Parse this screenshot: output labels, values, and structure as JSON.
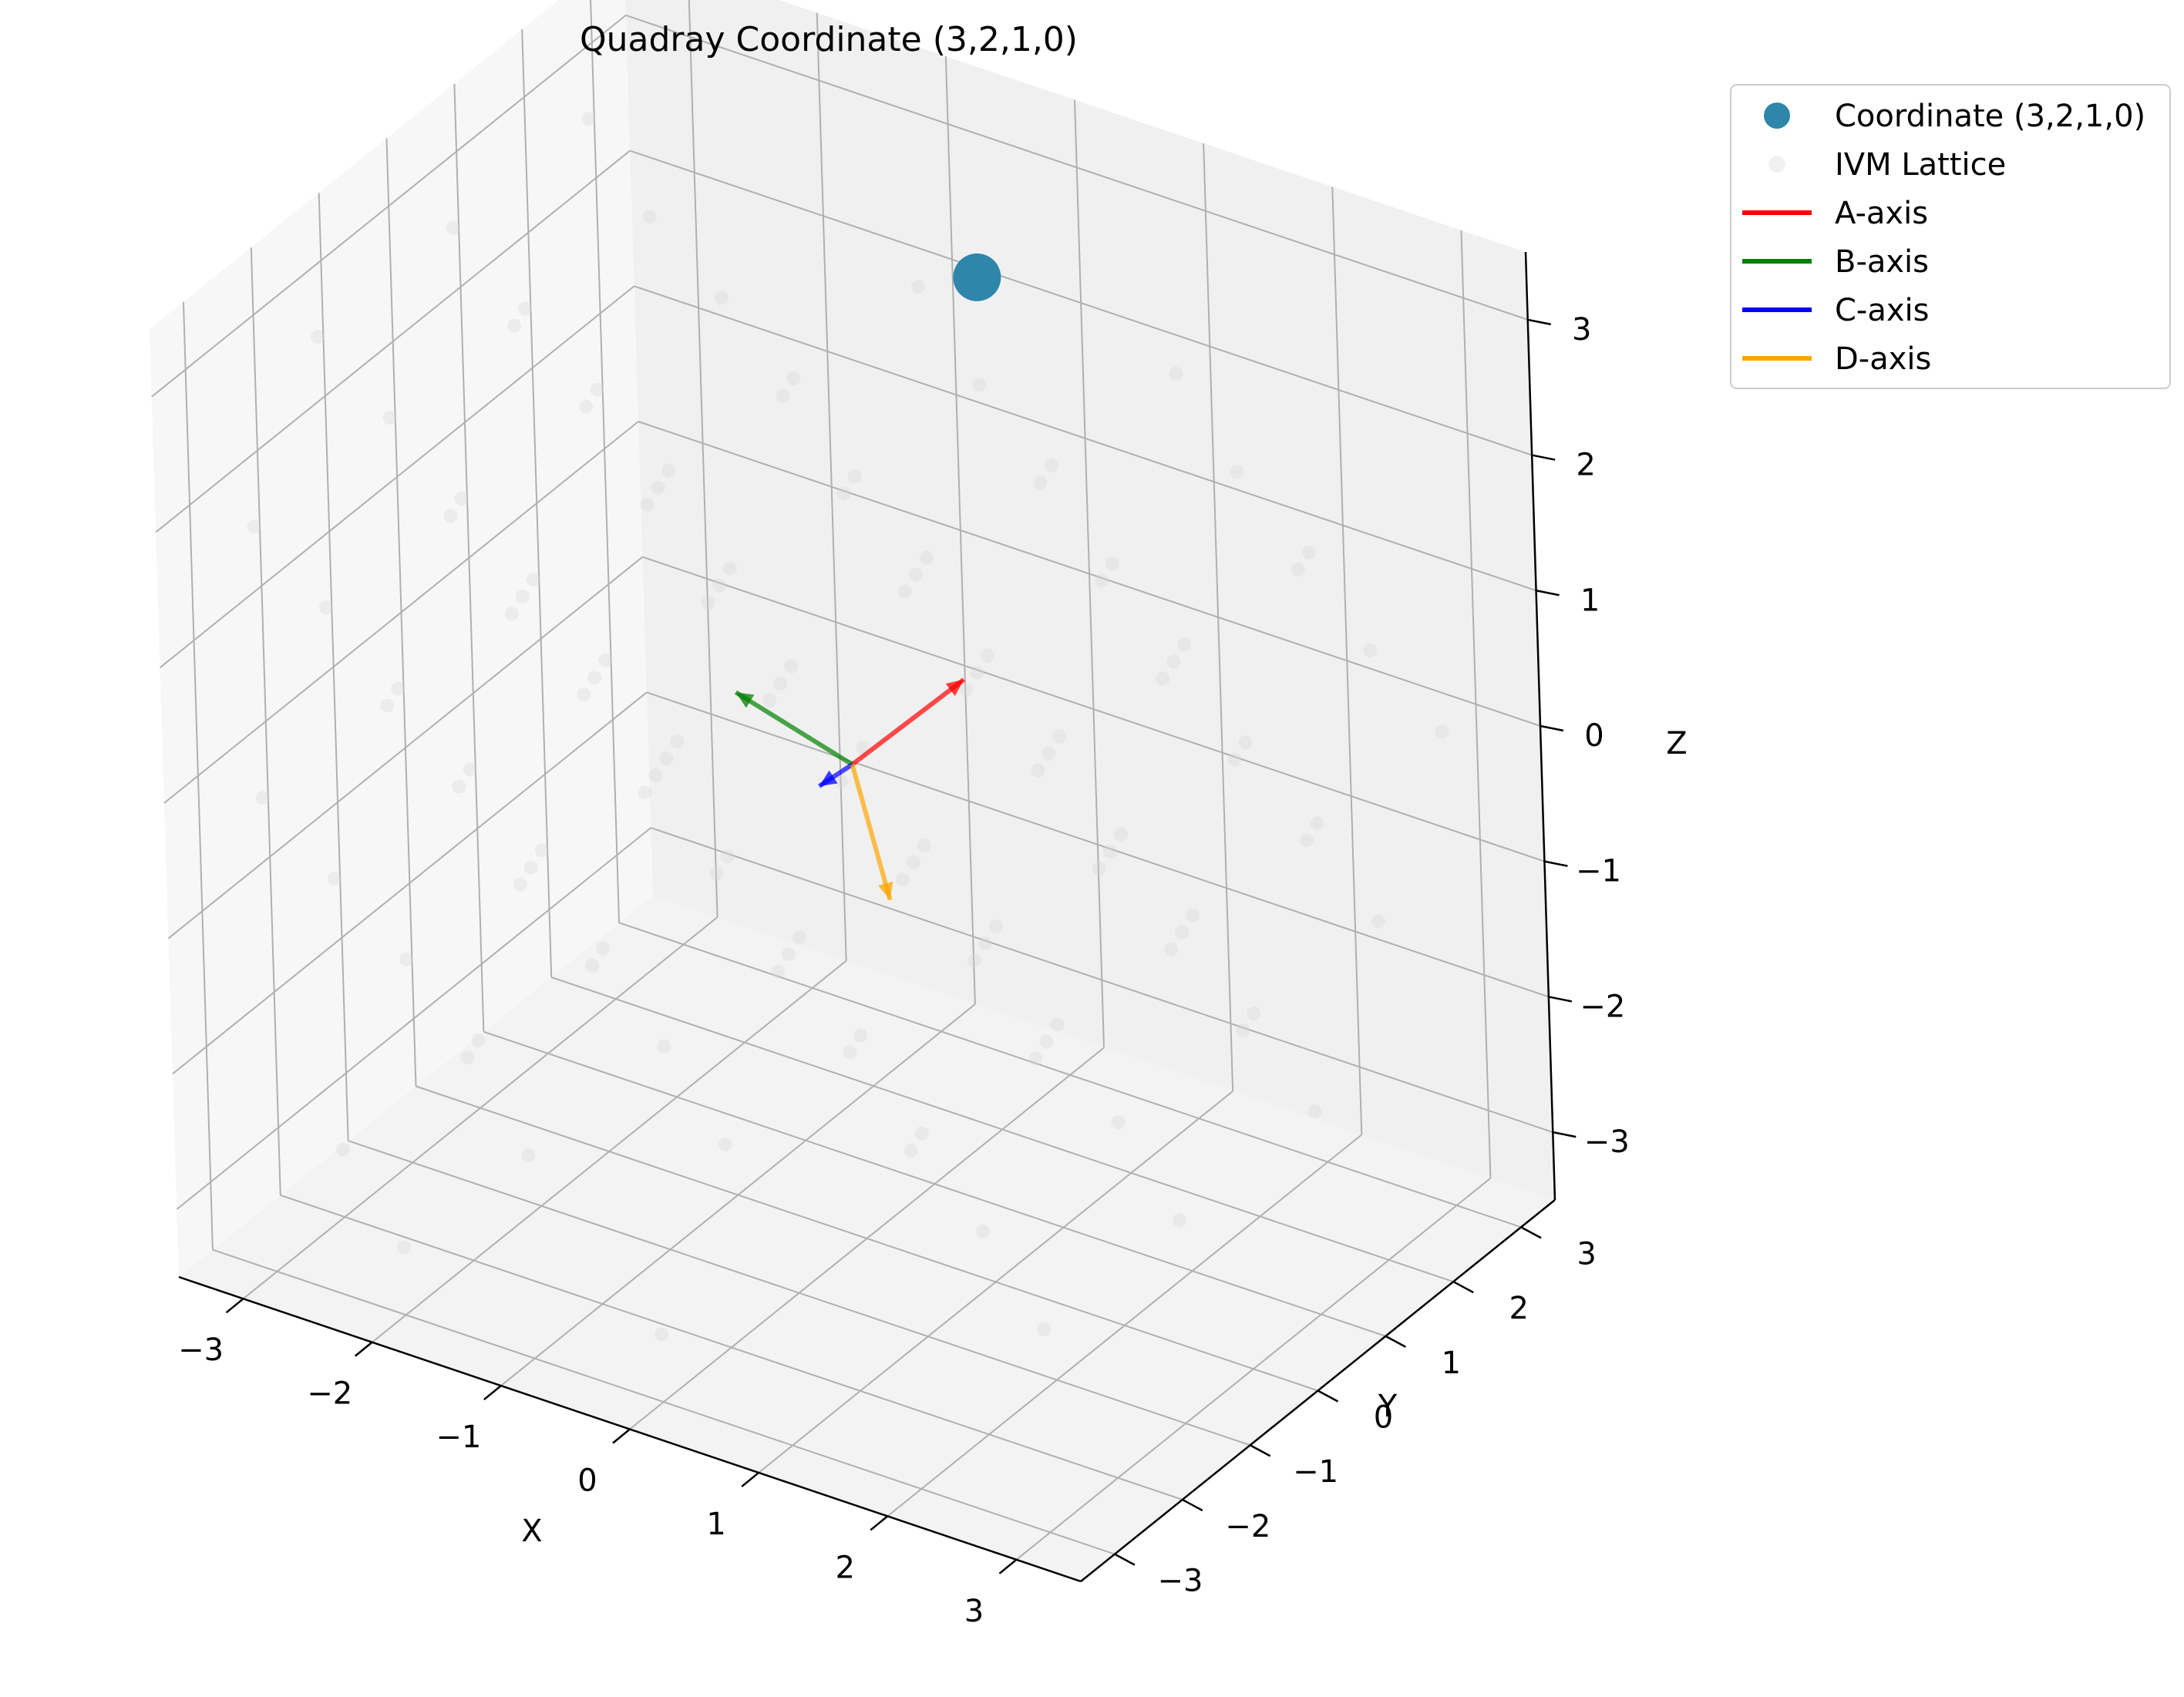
{
  "chart_data": {
    "type": "scatter",
    "projection": "3d",
    "title": "Quadray Coordinate (3,2,1,0)",
    "xlabel": "X",
    "ylabel": "Y",
    "zlabel": "Z",
    "xlim": [
      -3.5,
      3.5
    ],
    "ylim": [
      -3.5,
      3.5
    ],
    "zlim": [
      -3.5,
      3.5
    ],
    "xticks": [
      "−3",
      "−2",
      "−1",
      "0",
      "1",
      "2",
      "3"
    ],
    "yticks": [
      "−3",
      "−2",
      "−1",
      "0",
      "1",
      "2",
      "3"
    ],
    "zticks": [
      "−3",
      "−2",
      "−1",
      "0",
      "1",
      "2",
      "3"
    ],
    "grid": true,
    "legend_placement": "upper-right, outside",
    "series": [
      {
        "name": "Coordinate (3,2,1,0)",
        "kind": "point",
        "color": "#2e86ab",
        "points": [
          [
            0.71,
            0.71,
            3.54
          ]
        ]
      },
      {
        "name": "IVM Lattice",
        "kind": "points",
        "color": "#d8d8d8",
        "points": [
          [
            -3,
            -3,
            0
          ],
          [
            -3,
            -3,
            2
          ],
          [
            -3,
            -2,
            -3
          ],
          [
            -3,
            -2,
            -1
          ],
          [
            -3,
            -2,
            1
          ],
          [
            -3,
            -2,
            3
          ],
          [
            -3,
            -1,
            -2
          ],
          [
            -3,
            -1,
            0
          ],
          [
            -3,
            -1,
            2
          ],
          [
            -3,
            0,
            -3
          ],
          [
            -3,
            0,
            -1
          ],
          [
            -3,
            0,
            1
          ],
          [
            -3,
            0,
            3
          ],
          [
            -3,
            1,
            -2
          ],
          [
            -3,
            1,
            0
          ],
          [
            -3,
            1,
            2
          ],
          [
            -3,
            2,
            -1
          ],
          [
            -3,
            2,
            1
          ],
          [
            -3,
            2,
            3
          ],
          [
            -3,
            3,
            -2
          ],
          [
            -3,
            3,
            0
          ],
          [
            -2,
            -3,
            -3
          ],
          [
            -2,
            -3,
            1
          ],
          [
            -2,
            -2,
            -2
          ],
          [
            -2,
            -2,
            0
          ],
          [
            -2,
            -2,
            2
          ],
          [
            -2,
            -1,
            -1
          ],
          [
            -2,
            -1,
            1
          ],
          [
            -2,
            -1,
            3
          ],
          [
            -2,
            0,
            -2
          ],
          [
            -2,
            0,
            0
          ],
          [
            -2,
            0,
            2
          ],
          [
            -2,
            1,
            -1
          ],
          [
            -2,
            1,
            1
          ],
          [
            -2,
            1,
            3
          ],
          [
            -2,
            2,
            0
          ],
          [
            -2,
            2,
            2
          ],
          [
            -2,
            3,
            1
          ],
          [
            -1,
            -3,
            -2
          ],
          [
            -1,
            -3,
            0
          ],
          [
            -1,
            -3,
            2
          ],
          [
            -1,
            -2,
            -1
          ],
          [
            -1,
            -2,
            1
          ],
          [
            -1,
            -1,
            -2
          ],
          [
            -1,
            -1,
            0
          ],
          [
            -1,
            -1,
            2
          ],
          [
            -1,
            0,
            -1
          ],
          [
            -1,
            0,
            1
          ],
          [
            -1,
            1,
            -2
          ],
          [
            -1,
            1,
            0
          ],
          [
            -1,
            1,
            2
          ],
          [
            -1,
            2,
            -1
          ],
          [
            -1,
            2,
            1
          ],
          [
            -1,
            3,
            0
          ],
          [
            -1,
            3,
            2
          ],
          [
            0,
            -3,
            -3
          ],
          [
            0,
            -3,
            1
          ],
          [
            0,
            -2,
            -2
          ],
          [
            0,
            -2,
            0
          ],
          [
            0,
            -2,
            2
          ],
          [
            0,
            -1,
            -1
          ],
          [
            0,
            -1,
            1
          ],
          [
            0,
            0,
            -2
          ],
          [
            0,
            0,
            2
          ],
          [
            0,
            1,
            -1
          ],
          [
            0,
            1,
            1
          ],
          [
            0,
            2,
            -2
          ],
          [
            0,
            2,
            0
          ],
          [
            0,
            2,
            2
          ],
          [
            0,
            3,
            -1
          ],
          [
            0,
            3,
            1
          ],
          [
            1,
            -3,
            0
          ],
          [
            1,
            -3,
            2
          ],
          [
            1,
            -2,
            -1
          ],
          [
            1,
            -2,
            1
          ],
          [
            1,
            -1,
            -2
          ],
          [
            1,
            -1,
            0
          ],
          [
            1,
            -1,
            2
          ],
          [
            1,
            0,
            -1
          ],
          [
            1,
            0,
            1
          ],
          [
            1,
            1,
            -2
          ],
          [
            1,
            1,
            0
          ],
          [
            1,
            1,
            2
          ],
          [
            1,
            2,
            -1
          ],
          [
            1,
            2,
            1
          ],
          [
            1,
            3,
            -2
          ],
          [
            1,
            3,
            0
          ],
          [
            1,
            3,
            2
          ],
          [
            2,
            -3,
            -1
          ],
          [
            2,
            -3,
            1
          ],
          [
            2,
            -2,
            -2
          ],
          [
            2,
            -2,
            0
          ],
          [
            2,
            -2,
            2
          ],
          [
            2,
            -1,
            -1
          ],
          [
            2,
            -1,
            1
          ],
          [
            2,
            0,
            -2
          ],
          [
            2,
            0,
            0
          ],
          [
            2,
            0,
            2
          ],
          [
            2,
            1,
            -1
          ],
          [
            2,
            1,
            1
          ],
          [
            2,
            2,
            -2
          ],
          [
            2,
            2,
            0
          ],
          [
            2,
            2,
            2
          ],
          [
            2,
            3,
            -1
          ],
          [
            2,
            3,
            1
          ],
          [
            3,
            -3,
            -2
          ],
          [
            3,
            -3,
            0
          ],
          [
            3,
            -2,
            1
          ],
          [
            3,
            -1,
            -2
          ],
          [
            3,
            -1,
            0
          ],
          [
            3,
            -1,
            2
          ],
          [
            3,
            0,
            -1
          ],
          [
            3,
            0,
            1
          ],
          [
            3,
            1,
            -2
          ],
          [
            3,
            1,
            0
          ],
          [
            3,
            1,
            2
          ],
          [
            3,
            2,
            -1
          ],
          [
            3,
            2,
            1
          ],
          [
            3,
            3,
            0
          ]
        ]
      },
      {
        "name": "A-axis",
        "kind": "vector",
        "color": "#ff0000",
        "from": [
          0,
          0,
          0
        ],
        "to": [
          0.58,
          0.58,
          0.58
        ]
      },
      {
        "name": "B-axis",
        "kind": "vector",
        "color": "#008000",
        "from": [
          0,
          0,
          0
        ],
        "to": [
          -0.58,
          -0.58,
          0.58
        ]
      },
      {
        "name": "C-axis",
        "kind": "vector",
        "color": "#0000ff",
        "from": [
          0,
          0,
          0
        ],
        "to": [
          -0.58,
          0.58,
          -0.58
        ]
      },
      {
        "name": "D-axis",
        "kind": "vector",
        "color": "#ffa500",
        "from": [
          0,
          0,
          0
        ],
        "to": [
          0.58,
          -0.58,
          -0.58
        ]
      }
    ]
  }
}
